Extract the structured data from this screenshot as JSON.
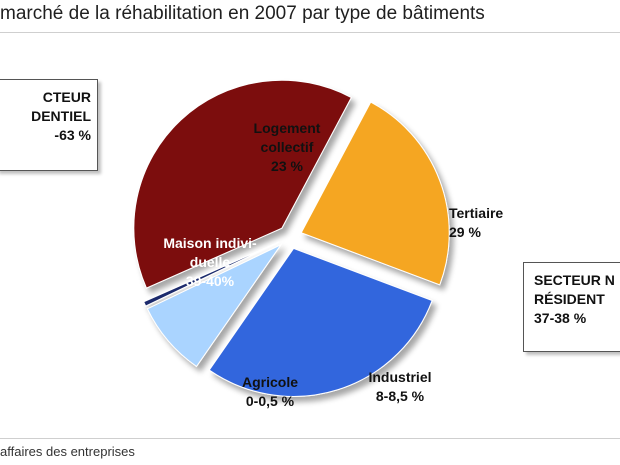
{
  "title": "marché de la réhabilitation en 2007 par type de bâtiments",
  "source": "affaires des entreprises",
  "sector_left": {
    "lines": [
      "CTEUR",
      "DENTIEL",
      "-63 %"
    ]
  },
  "sector_right": {
    "lines": [
      "SECTEUR N",
      "RÉSIDENT",
      "37-38 %"
    ]
  },
  "chart_data": {
    "type": "pie",
    "title": "marché de la réhabilitation en 2007 par type de bâtiments",
    "slices": [
      {
        "label_lines": [
          "Logement",
          "collectif",
          "23 %"
        ],
        "value": 23,
        "color": "#f5a623",
        "exploded": true
      },
      {
        "label_lines": [
          "Tertiaire",
          "29 %"
        ],
        "value": 29,
        "color": "#3366dd",
        "exploded": true
      },
      {
        "label_lines": [
          "Industriel",
          "8-8,5 %"
        ],
        "value": 8.25,
        "color": "#aad4ff",
        "exploded": true
      },
      {
        "label_lines": [
          "Agricole",
          "0-0,5 %"
        ],
        "value": 0.5,
        "color": "#1a2a6c",
        "exploded": true
      },
      {
        "label_lines": [
          "Maison indivi-",
          "duelle",
          "39-40%"
        ],
        "value": 39.5,
        "color": "#7b0a0a",
        "exploded": true
      }
    ]
  }
}
